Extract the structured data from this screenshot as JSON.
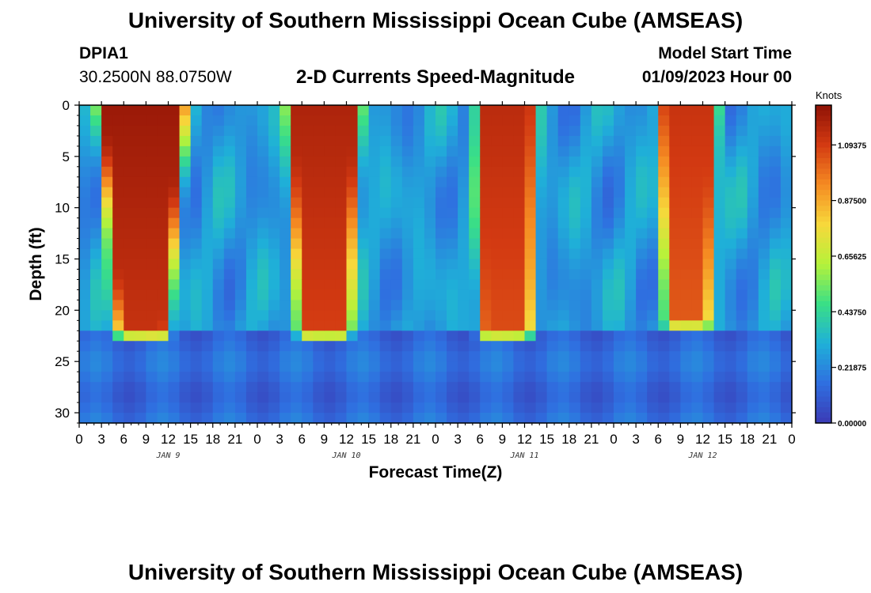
{
  "page": {
    "title_top": "University of Southern Mississippi Ocean Cube (AMSEAS)",
    "title_bottom": "University of Southern Mississippi Ocean Cube (AMSEAS)"
  },
  "header": {
    "station_id": "DPIA1",
    "location": "30.2500N  88.0750W",
    "model_start_label": "Model Start Time",
    "model_start_value": "01/09/2023 Hour 00"
  },
  "chart_data": {
    "type": "heatmap",
    "title": "2-D Currents Speed-Magnitude",
    "xlabel": "Forecast Time(Z)",
    "ylabel": "Depth (ft)",
    "x_range_hours": [
      0,
      96
    ],
    "y_range_ft": [
      0,
      31
    ],
    "x_tick_hours": [
      0,
      3,
      6,
      9,
      12,
      15,
      18,
      21,
      24,
      27,
      30,
      33,
      36,
      39,
      42,
      45,
      48,
      51,
      54,
      57,
      60,
      63,
      66,
      69,
      72,
      75,
      78,
      81,
      84,
      87,
      90,
      93,
      96
    ],
    "x_tick_labels": [
      "0",
      "3",
      "6",
      "9",
      "12",
      "15",
      "18",
      "21",
      "0",
      "3",
      "6",
      "9",
      "12",
      "15",
      "18",
      "21",
      "0",
      "3",
      "6",
      "9",
      "12",
      "15",
      "18",
      "21",
      "0",
      "3",
      "6",
      "9",
      "12",
      "15",
      "18",
      "21",
      "0"
    ],
    "y_ticks": [
      0,
      5,
      10,
      15,
      20,
      25,
      30
    ],
    "day_labels": [
      {
        "hour": 12,
        "text": "JAN 9"
      },
      {
        "hour": 36,
        "text": "JAN 10"
      },
      {
        "hour": 60,
        "text": "JAN 11"
      },
      {
        "hour": 84,
        "text": "JAN 12"
      }
    ],
    "colorbar": {
      "unit": "Knots",
      "min": 0.0,
      "max": 1.25,
      "ticks": [
        0.0,
        0.21875,
        0.4375,
        0.65625,
        0.875,
        1.09375
      ],
      "tick_labels": [
        "0.00000",
        "0.21875",
        "0.43750",
        "0.65625",
        "0.87500",
        "1.09375"
      ]
    },
    "ebb_events": [
      {
        "center_hour": 8.5,
        "half_width_top": 5.0,
        "half_width_bottom": 2.5,
        "max_depth_ft": 22,
        "peak_knots": 1.22
      },
      {
        "center_hour": 33.0,
        "half_width_top": 4.0,
        "half_width_bottom": 2.5,
        "max_depth_ft": 22,
        "peak_knots": 1.18
      },
      {
        "center_hour": 57.5,
        "half_width_top": 3.0,
        "half_width_bottom": 2.5,
        "max_depth_ft": 22,
        "peak_knots": 1.15
      },
      {
        "center_hour": 82.0,
        "half_width_top": 3.0,
        "half_width_bottom": 2.0,
        "max_depth_ft": 21,
        "peak_knots": 1.12
      }
    ]
  },
  "colors": {
    "colormap": [
      "#3b3bb5",
      "#2f6fe0",
      "#1fb0d8",
      "#3adf86",
      "#b6f23a",
      "#f7d83b",
      "#f58a22",
      "#d33a12",
      "#8e1206"
    ]
  }
}
